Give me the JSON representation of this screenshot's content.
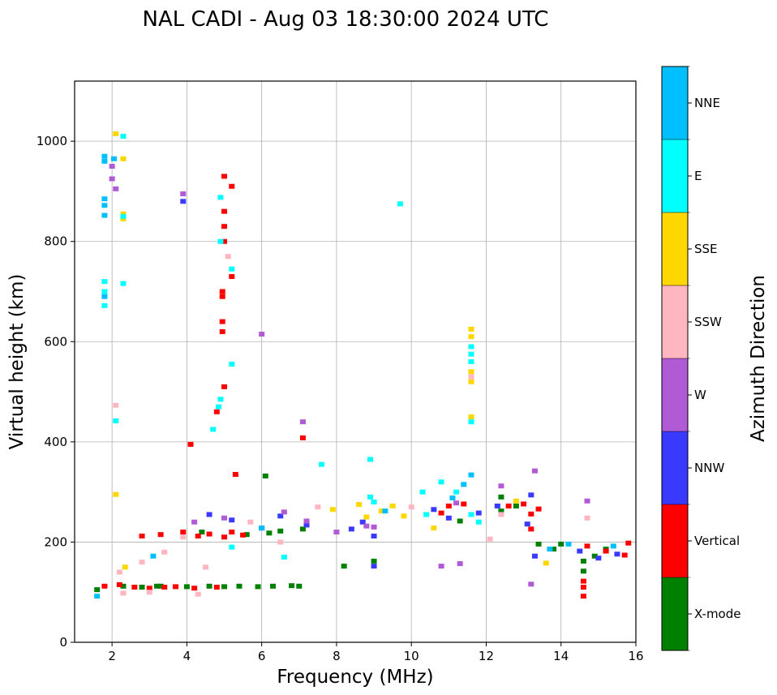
{
  "chart_data": {
    "type": "scatter",
    "title": "NAL CADI - Aug 03 18:30:00 2024 UTC",
    "xlabel": "Frequency (MHz)",
    "ylabel": "Virtual height (km)",
    "xlim": [
      1,
      16
    ],
    "ylim": [
      0,
      1120
    ],
    "xticks": [
      2,
      4,
      6,
      8,
      10,
      12,
      14,
      16
    ],
    "yticks": [
      0,
      200,
      400,
      600,
      800,
      1000
    ],
    "grid": true,
    "colorbar": {
      "label": "Azimuth Direction",
      "categories": [
        "X-mode",
        "Vertical",
        "NNW",
        "W",
        "SSW",
        "SSE",
        "E",
        "NNE"
      ],
      "colors": [
        "#008000",
        "#ff0000",
        "#3a3aff",
        "#b05ad6",
        "#ffb6c1",
        "#ffd700",
        "#00ffff",
        "#00bfff"
      ]
    },
    "series": [
      {
        "name": "X-mode",
        "points": [
          [
            1.6,
            105
          ],
          [
            2.3,
            112
          ],
          [
            2.8,
            110
          ],
          [
            3.2,
            112
          ],
          [
            4.0,
            111
          ],
          [
            4.6,
            112
          ],
          [
            5.0,
            111
          ],
          [
            5.4,
            112
          ],
          [
            5.9,
            111
          ],
          [
            6.3,
            112
          ],
          [
            6.8,
            113
          ],
          [
            7.0,
            112
          ],
          [
            5.6,
            215
          ],
          [
            6.2,
            218
          ],
          [
            6.5,
            222
          ],
          [
            7.1,
            226
          ],
          [
            8.2,
            152
          ],
          [
            9.0,
            162
          ],
          [
            11.3,
            242
          ],
          [
            12.4,
            290
          ],
          [
            12.4,
            262
          ],
          [
            12.8,
            272
          ],
          [
            13.4,
            196
          ],
          [
            13.8,
            186
          ],
          [
            14.0,
            196
          ],
          [
            14.6,
            142
          ],
          [
            14.6,
            162
          ],
          [
            14.9,
            172
          ],
          [
            15.2,
            186
          ],
          [
            6.1,
            332
          ],
          [
            4.4,
            220
          ],
          [
            3.3,
            112
          ]
        ]
      },
      {
        "name": "Vertical",
        "points": [
          [
            1.8,
            112
          ],
          [
            2.2,
            115
          ],
          [
            2.6,
            110
          ],
          [
            3.0,
            108
          ],
          [
            3.4,
            110
          ],
          [
            3.7,
            111
          ],
          [
            4.2,
            108
          ],
          [
            4.8,
            110
          ],
          [
            2.8,
            212
          ],
          [
            3.3,
            215
          ],
          [
            3.9,
            220
          ],
          [
            4.3,
            212
          ],
          [
            4.6,
            216
          ],
          [
            5.0,
            210
          ],
          [
            5.2,
            220
          ],
          [
            5.5,
            214
          ],
          [
            5.0,
            930
          ],
          [
            5.2,
            910
          ],
          [
            5.0,
            860
          ],
          [
            5.0,
            830
          ],
          [
            5.0,
            800
          ],
          [
            4.95,
            700
          ],
          [
            4.95,
            690
          ],
          [
            4.95,
            640
          ],
          [
            4.95,
            620
          ],
          [
            5.2,
            730
          ],
          [
            5.0,
            510
          ],
          [
            4.8,
            460
          ],
          [
            4.1,
            395
          ],
          [
            7.1,
            408
          ],
          [
            10.8,
            258
          ],
          [
            11.0,
            272
          ],
          [
            11.4,
            276
          ],
          [
            12.6,
            272
          ],
          [
            13.0,
            276
          ],
          [
            13.2,
            256
          ],
          [
            13.4,
            266
          ],
          [
            13.2,
            226
          ],
          [
            14.6,
            110
          ],
          [
            14.6,
            92
          ],
          [
            14.6,
            122
          ],
          [
            14.7,
            192
          ],
          [
            15.2,
            182
          ],
          [
            15.7,
            174
          ],
          [
            15.8,
            198
          ],
          [
            5.3,
            335
          ]
        ]
      },
      {
        "name": "NNW",
        "points": [
          [
            4.6,
            255
          ],
          [
            5.2,
            244
          ],
          [
            6.0,
            228
          ],
          [
            6.5,
            252
          ],
          [
            7.2,
            234
          ],
          [
            8.7,
            240
          ],
          [
            9.0,
            212
          ],
          [
            9.0,
            152
          ],
          [
            10.6,
            265
          ],
          [
            11.0,
            248
          ],
          [
            11.8,
            258
          ],
          [
            13.1,
            236
          ],
          [
            13.2,
            294
          ],
          [
            13.3,
            172
          ],
          [
            14.5,
            182
          ],
          [
            15.0,
            168
          ],
          [
            15.5,
            176
          ],
          [
            3.9,
            880
          ],
          [
            8.4,
            226
          ],
          [
            12.3,
            272
          ]
        ]
      },
      {
        "name": "W",
        "points": [
          [
            2.0,
            950
          ],
          [
            2.0,
            925
          ],
          [
            2.1,
            905
          ],
          [
            3.9,
            895
          ],
          [
            6.0,
            615
          ],
          [
            4.2,
            240
          ],
          [
            5.0,
            248
          ],
          [
            6.6,
            260
          ],
          [
            7.2,
            242
          ],
          [
            8.0,
            220
          ],
          [
            8.8,
            232
          ],
          [
            10.8,
            152
          ],
          [
            11.3,
            157
          ],
          [
            13.2,
            116
          ],
          [
            13.3,
            342
          ],
          [
            12.4,
            312
          ],
          [
            14.7,
            282
          ],
          [
            7.1,
            440
          ],
          [
            9.0,
            230
          ],
          [
            11.2,
            278
          ]
        ]
      },
      {
        "name": "SSW",
        "points": [
          [
            2.2,
            140
          ],
          [
            2.8,
            160
          ],
          [
            3.4,
            180
          ],
          [
            3.9,
            210
          ],
          [
            4.5,
            150
          ],
          [
            5.7,
            240
          ],
          [
            6.5,
            200
          ],
          [
            7.5,
            270
          ],
          [
            10.0,
            270
          ],
          [
            11.6,
            530
          ],
          [
            12.4,
            255
          ],
          [
            2.3,
            98
          ],
          [
            3.0,
            100
          ],
          [
            4.3,
            96
          ],
          [
            5.1,
            770
          ],
          [
            2.1,
            473
          ],
          [
            12.1,
            206
          ],
          [
            14.7,
            248
          ]
        ]
      },
      {
        "name": "SSE",
        "points": [
          [
            2.3,
            855
          ],
          [
            2.3,
            845
          ],
          [
            2.3,
            965
          ],
          [
            2.1,
            1015
          ],
          [
            2.1,
            295
          ],
          [
            8.6,
            275
          ],
          [
            8.8,
            250
          ],
          [
            9.2,
            262
          ],
          [
            9.5,
            272
          ],
          [
            9.8,
            252
          ],
          [
            10.6,
            228
          ],
          [
            11.6,
            625
          ],
          [
            11.6,
            610
          ],
          [
            11.6,
            540
          ],
          [
            11.6,
            520
          ],
          [
            11.6,
            450
          ],
          [
            7.9,
            265
          ],
          [
            2.35,
            150
          ],
          [
            12.8,
            282
          ],
          [
            13.6,
            158
          ]
        ]
      },
      {
        "name": "E",
        "points": [
          [
            2.3,
            1010
          ],
          [
            2.3,
            850
          ],
          [
            1.8,
            720
          ],
          [
            1.8,
            700
          ],
          [
            1.8,
            672
          ],
          [
            2.3,
            716
          ],
          [
            2.1,
            442
          ],
          [
            4.9,
            888
          ],
          [
            4.9,
            800
          ],
          [
            5.2,
            745
          ],
          [
            5.2,
            555
          ],
          [
            4.9,
            485
          ],
          [
            4.85,
            470
          ],
          [
            4.7,
            425
          ],
          [
            9.7,
            875
          ],
          [
            11.6,
            590
          ],
          [
            11.6,
            575
          ],
          [
            11.6,
            560
          ],
          [
            11.6,
            440
          ],
          [
            8.9,
            365
          ],
          [
            8.9,
            290
          ],
          [
            9.0,
            280
          ],
          [
            10.3,
            300
          ],
          [
            10.8,
            320
          ],
          [
            11.2,
            300
          ],
          [
            11.6,
            255
          ],
          [
            11.8,
            240
          ],
          [
            10.4,
            255
          ],
          [
            7.6,
            355
          ],
          [
            6.6,
            170
          ],
          [
            5.2,
            190
          ]
        ]
      },
      {
        "name": "NNE",
        "points": [
          [
            1.8,
            970
          ],
          [
            1.8,
            960
          ],
          [
            1.8,
            885
          ],
          [
            1.8,
            872
          ],
          [
            1.8,
            852
          ],
          [
            2.05,
            965
          ],
          [
            1.8,
            690
          ],
          [
            6.0,
            228
          ],
          [
            9.3,
            262
          ],
          [
            11.4,
            315
          ],
          [
            11.6,
            334
          ],
          [
            11.1,
            288
          ],
          [
            13.7,
            186
          ],
          [
            14.2,
            196
          ],
          [
            15.4,
            192
          ],
          [
            1.6,
            92
          ],
          [
            3.1,
            172
          ]
        ]
      }
    ]
  }
}
